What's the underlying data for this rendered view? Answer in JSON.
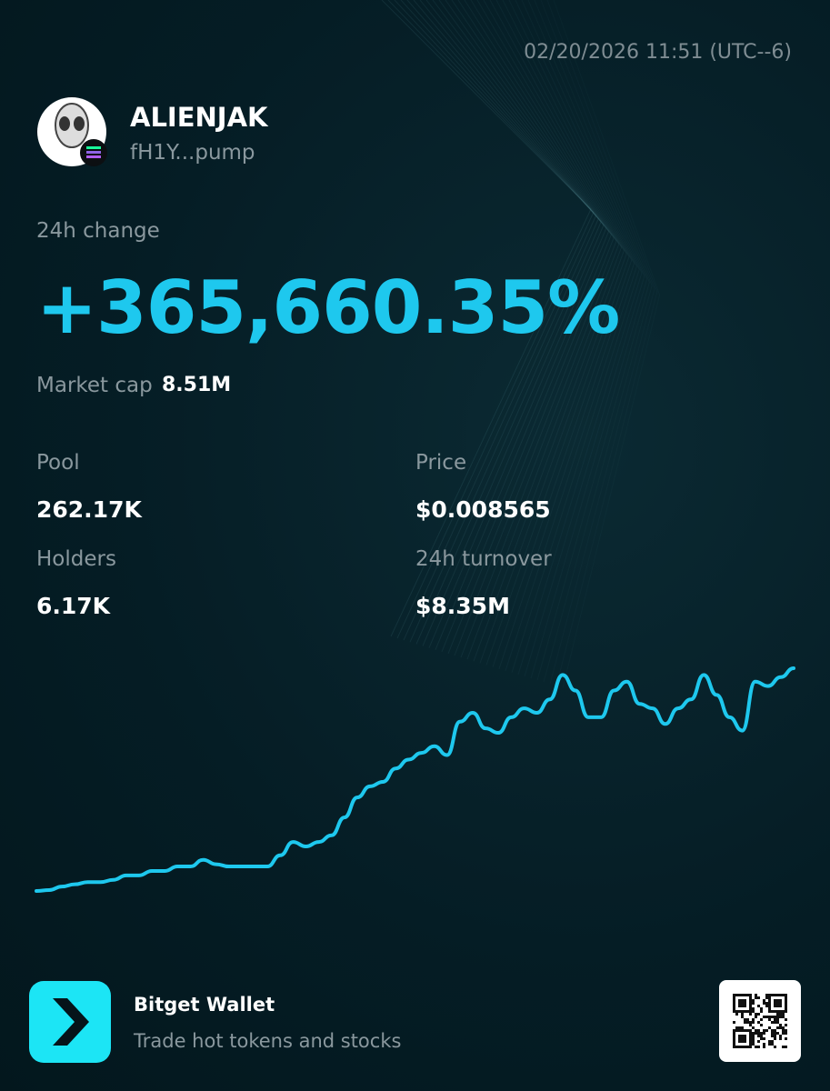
{
  "header": {
    "timestamp": "02/20/2026 11:51 (UTC--6)"
  },
  "token": {
    "name": "ALIENJAK",
    "address": "fH1Y...pump"
  },
  "change": {
    "label": "24h change",
    "value": "+365,660.35%"
  },
  "market_cap": {
    "label": "Market cap",
    "value": "8.51M"
  },
  "stats": [
    {
      "label": "Pool",
      "value": "262.17K"
    },
    {
      "label": "Price",
      "value": "$0.008565"
    },
    {
      "label": "Holders",
      "value": "6.17K"
    },
    {
      "label": "24h turnover",
      "value": "$8.35M"
    }
  ],
  "chart": {
    "type": "line",
    "color": "#1ec8ee",
    "ylim": [
      0,
      100
    ],
    "values": [
      0,
      0.4,
      2,
      3,
      4,
      4,
      5,
      7,
      7,
      9,
      9,
      11,
      11,
      14,
      12,
      11,
      11,
      11,
      11,
      16,
      22,
      20,
      22,
      25,
      33,
      42,
      47,
      49,
      55,
      59,
      62,
      65,
      61,
      76,
      80,
      73,
      71,
      78,
      82,
      80,
      86,
      97,
      90,
      78,
      78,
      90,
      94,
      84,
      82,
      75,
      82,
      86,
      97,
      88,
      78,
      72,
      94,
      92,
      96,
      100
    ]
  },
  "footer": {
    "brand": "Bitget Wallet",
    "tagline": "Trade hot tokens and stocks"
  }
}
